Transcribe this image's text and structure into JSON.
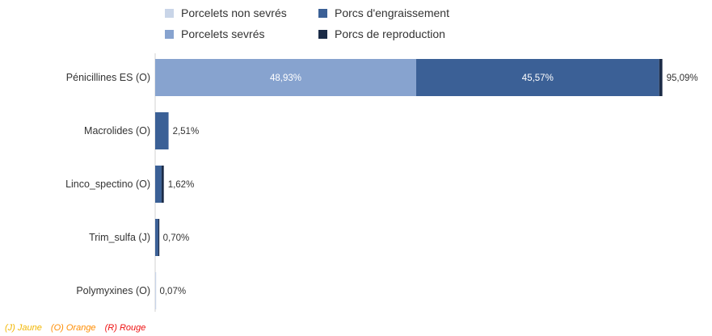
{
  "chart_data": {
    "type": "bar",
    "orientation": "horizontal",
    "stacked": true,
    "categories": [
      "Pénicillines ES (O)",
      "Macrolides (O)",
      "Linco_spectino (O)",
      "Trim_sulfa (J)",
      "Polymyxines (O)"
    ],
    "series": [
      {
        "name": "Porcelets non sevrés",
        "color": "#c9d5e8",
        "values": [
          0.0,
          0.0,
          0.0,
          0.0,
          0.07
        ]
      },
      {
        "name": "Porcelets sevrés",
        "color": "#87a3cf",
        "values": [
          48.93,
          0.0,
          0.0,
          0.0,
          0.0
        ]
      },
      {
        "name": "Porcs d'engraissement",
        "color": "#3b6096",
        "values": [
          45.57,
          2.51,
          1.2,
          0.6,
          0.0
        ]
      },
      {
        "name": "Porcs de reproduction",
        "color": "#1b2b47",
        "values": [
          0.59,
          0.0,
          0.42,
          0.1,
          0.0
        ]
      }
    ],
    "segment_labels": [
      {
        "category": 0,
        "series": 1,
        "text": "48,93%"
      },
      {
        "category": 0,
        "series": 2,
        "text": "45,57%"
      }
    ],
    "totals": [
      "95,09%",
      "2,51%",
      "1,62%",
      "0,70%",
      "0,07%"
    ],
    "xlim": [
      0,
      100
    ],
    "grid": false,
    "legend_position": "top"
  },
  "legend": {
    "items": [
      {
        "label": "Porcelets non sevrés",
        "color": "#c9d5e8"
      },
      {
        "label": "Porcs d'engraissement",
        "color": "#3b6096"
      },
      {
        "label": "Porcelets sevrés",
        "color": "#87a3cf"
      },
      {
        "label": "Porcs de reproduction",
        "color": "#1b2b47"
      }
    ]
  },
  "footnote": {
    "items": [
      {
        "text": "(J) Jaune",
        "color": "#f2b600"
      },
      {
        "text": "(O) Orange",
        "color": "#ff8c00"
      },
      {
        "text": "(R) Rouge",
        "color": "#ee1111"
      }
    ]
  }
}
